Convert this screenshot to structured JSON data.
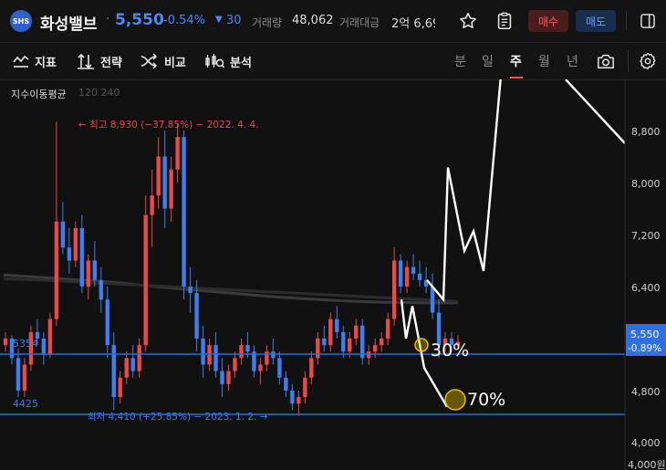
{
  "header": {
    "logo_text": "SHS",
    "stock_name": "화성밸브",
    "dot": "·",
    "price": "5,550",
    "change_pct": "-0.54%",
    "change_arrow": "▼",
    "change_count": "30",
    "volume_label": "거래량",
    "volume_value": "48,062",
    "amount_label": "거래대금",
    "amount_value": "2억 6,69",
    "buy_label": "매수",
    "sell_label": "매도",
    "icons": [
      "star-icon",
      "order-book-icon",
      "panel-toggle-icon"
    ]
  },
  "toolbar": {
    "items": [
      {
        "label": "지표",
        "icon": "indicator-icon"
      },
      {
        "label": "전략",
        "icon": "strategy-icon"
      },
      {
        "label": "비교",
        "icon": "compare-icon"
      },
      {
        "label": "분석",
        "icon": "analysis-icon"
      }
    ],
    "periods": [
      "분",
      "일",
      "주",
      "월",
      "년"
    ],
    "active_period": "주",
    "icons": [
      "camera-icon",
      "settings-icon"
    ]
  },
  "chart": {
    "indicator_label": "지수이동평균",
    "indicator_params": "120 240",
    "high_annotation": "← 최고 8,930 (−37.85%) − 2022. 4. 4.",
    "low_annotation": "최저 4,410 (+25.85%) − 2023. 1. 2. →",
    "colors": {
      "up": "#e84a4a",
      "down": "#3d7ff0",
      "line": "#1f6fe0",
      "overlay": "#ffffff",
      "marker": "#e5c100"
    },
    "level_lines": [
      {
        "label": "5354",
        "price": 5354
      },
      {
        "label": "4425",
        "price": 4425
      }
    ],
    "markers": [
      {
        "label": "30%"
      },
      {
        "label": "70%"
      }
    ],
    "price_axis": {
      "ticks": [
        "8,800",
        "8,000",
        "7,200",
        "6,400",
        "5,600",
        "4,800",
        "4,000",
        "4,000원"
      ],
      "current_price": "5,550",
      "current_change": "-0.89%"
    },
    "overlay_path_prices": [
      6200,
      5600,
      6100,
      5150,
      4550
    ],
    "overlay_path2_prices": [
      6500,
      6200,
      8230,
      6950,
      7250,
      6640,
      9800
    ]
  },
  "chart_data": {
    "type": "candlestick",
    "period": "weekly",
    "high": {
      "value": 8930,
      "date": "2022. 4. 4."
    },
    "low": {
      "value": 4410,
      "date": "2023. 1. 2."
    },
    "ylim": [
      4000,
      9200
    ],
    "series": [
      {
        "values": [
          [
            5500,
            5700,
            5400,
            5600
          ],
          [
            5600,
            5650,
            5200,
            5300
          ],
          [
            5300,
            5450,
            4700,
            4800
          ],
          [
            4800,
            5300,
            4700,
            5200
          ],
          [
            5200,
            5800,
            5100,
            5700
          ],
          [
            5700,
            5900,
            5500,
            5600
          ],
          [
            5600,
            5700,
            5200,
            5350
          ],
          [
            5350,
            6000,
            5300,
            5900
          ],
          [
            5900,
            8930,
            5800,
            7400
          ],
          [
            7400,
            7700,
            6900,
            7000
          ],
          [
            7000,
            7300,
            6600,
            6800
          ],
          [
            6800,
            7400,
            6700,
            7300
          ],
          [
            7300,
            7500,
            6300,
            6400
          ],
          [
            6400,
            6900,
            6200,
            6800
          ],
          [
            6800,
            7100,
            6400,
            6500
          ],
          [
            6500,
            6700,
            6000,
            6200
          ],
          [
            6200,
            6400,
            5300,
            5500
          ],
          [
            5500,
            5700,
            4500,
            4700
          ],
          [
            4700,
            5100,
            4600,
            5000
          ],
          [
            5000,
            5400,
            4900,
            5300
          ],
          [
            5300,
            5500,
            5000,
            5100
          ],
          [
            5100,
            5600,
            5000,
            5500
          ],
          [
            5500,
            7800,
            5400,
            7500
          ],
          [
            7500,
            8200,
            7000,
            7800
          ],
          [
            7800,
            8700,
            7600,
            8400
          ],
          [
            8400,
            8800,
            7300,
            7600
          ],
          [
            7600,
            8400,
            7400,
            8200
          ],
          [
            8200,
            8900,
            8000,
            8700
          ],
          [
            8700,
            8800,
            6200,
            6400
          ],
          [
            6400,
            6700,
            6000,
            6300
          ],
          [
            6300,
            6500,
            5400,
            5600
          ],
          [
            5600,
            5800,
            5000,
            5200
          ],
          [
            5200,
            5600,
            5100,
            5500
          ],
          [
            5500,
            5700,
            5000,
            5100
          ],
          [
            5100,
            5300,
            4700,
            4900
          ],
          [
            4900,
            5200,
            4800,
            5100
          ],
          [
            5100,
            5400,
            5000,
            5300
          ],
          [
            5300,
            5600,
            5200,
            5500
          ],
          [
            5500,
            5700,
            5300,
            5400
          ],
          [
            5400,
            5500,
            5000,
            5100
          ],
          [
            5100,
            5300,
            4900,
            5200
          ],
          [
            5200,
            5500,
            5100,
            5400
          ],
          [
            5400,
            5600,
            5200,
            5300
          ],
          [
            5300,
            5400,
            4900,
            5000
          ],
          [
            5000,
            5100,
            4700,
            4800
          ],
          [
            4800,
            4900,
            4500,
            4600
          ],
          [
            4600,
            4800,
            4410,
            4700
          ],
          [
            4700,
            5100,
            4600,
            5000
          ],
          [
            5000,
            5400,
            4900,
            5300
          ],
          [
            5300,
            5700,
            5200,
            5600
          ],
          [
            5600,
            5800,
            5400,
            5500
          ],
          [
            5500,
            6000,
            5400,
            5900
          ],
          [
            5900,
            6100,
            5600,
            5700
          ],
          [
            5700,
            5800,
            5300,
            5400
          ],
          [
            5400,
            5700,
            5300,
            5600
          ],
          [
            5600,
            5900,
            5500,
            5800
          ],
          [
            5800,
            5900,
            5200,
            5300
          ],
          [
            5300,
            5500,
            5200,
            5400
          ],
          [
            5400,
            5600,
            5300,
            5500
          ],
          [
            5500,
            5700,
            5400,
            5600
          ],
          [
            5600,
            6000,
            5500,
            5900
          ],
          [
            5900,
            7000,
            5800,
            6800
          ],
          [
            6800,
            6900,
            6300,
            6400
          ],
          [
            6400,
            6800,
            6300,
            6700
          ],
          [
            6700,
            6900,
            6500,
            6600
          ],
          [
            6600,
            6800,
            6400,
            6500
          ],
          [
            6500,
            6700,
            6300,
            6400
          ],
          [
            6400,
            6600,
            5900,
            6000
          ],
          [
            6000,
            6200,
            5300,
            5500
          ],
          [
            5500,
            5700,
            5400,
            5600
          ],
          [
            5600,
            5700,
            5400,
            5500
          ],
          [
            5500,
            5650,
            5450,
            5550
          ]
        ]
      }
    ],
    "moving_averages": [
      {
        "name": "120",
        "values": [
          6580,
          6540,
          6500,
          6460,
          6400,
          6350,
          6300,
          6250,
          6210,
          6180,
          6160,
          6150,
          6150
        ]
      },
      {
        "name": "240",
        "values": [
          6520,
          6500,
          6470,
          6440,
          6410,
          6380,
          6350,
          6320,
          6290,
          6260,
          6230,
          6200,
          6170
        ]
      }
    ]
  }
}
